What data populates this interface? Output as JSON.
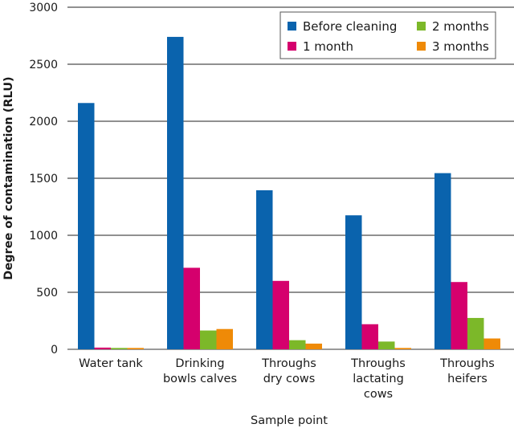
{
  "chart_data": {
    "type": "bar",
    "ylabel": "Degree of contamination (RLU)",
    "xlabel": "Sample point",
    "ylim": [
      0,
      3000
    ],
    "yticks": [
      0,
      500,
      1000,
      1500,
      2000,
      2500,
      3000
    ],
    "grid": true,
    "legend_position": "top-right",
    "categories": [
      [
        "Water tank"
      ],
      [
        "Drinking",
        "bowls calves"
      ],
      [
        "Throughs",
        "dry cows"
      ],
      [
        "Throughs",
        "lactating",
        "cows"
      ],
      [
        "Throughs",
        "heifers"
      ]
    ],
    "series": [
      {
        "name": "Before cleaning",
        "color": "#0a63ad",
        "values": [
          2160,
          2740,
          1395,
          1175,
          1545
        ]
      },
      {
        "name": "1 month",
        "color": "#d5006d",
        "values": [
          15,
          715,
          600,
          220,
          590
        ]
      },
      {
        "name": "2 months",
        "color": "#7cb829",
        "values": [
          12,
          165,
          80,
          68,
          275
        ]
      },
      {
        "name": "3 months",
        "color": "#ef8a07",
        "values": [
          12,
          178,
          50,
          12,
          95
        ]
      }
    ],
    "legend_order": [
      "Before cleaning",
      "2 months",
      "1 month",
      "3 months"
    ]
  }
}
